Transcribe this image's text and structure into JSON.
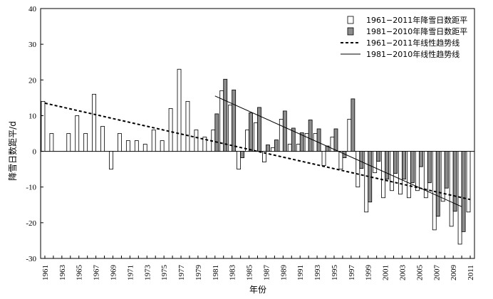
{
  "chart_data": {
    "type": "bar",
    "title": "",
    "xlabel": "年份",
    "ylabel": "降雪日数距平/d",
    "ylim": [
      -30,
      40
    ],
    "yticks": [
      -30,
      -20,
      -10,
      0,
      10,
      20,
      30,
      40
    ],
    "x": [
      1961,
      1962,
      1963,
      1964,
      1965,
      1966,
      1967,
      1968,
      1969,
      1970,
      1971,
      1972,
      1973,
      1974,
      1975,
      1976,
      1977,
      1978,
      1979,
      1980,
      1981,
      1982,
      1983,
      1984,
      1985,
      1986,
      1987,
      1988,
      1989,
      1990,
      1991,
      1992,
      1993,
      1994,
      1995,
      1996,
      1997,
      1998,
      1999,
      2000,
      2001,
      2002,
      2003,
      2004,
      2005,
      2006,
      2007,
      2008,
      2009,
      2010,
      2011
    ],
    "x_tick_labels": [
      "1961",
      "1963",
      "1965",
      "1967",
      "1969",
      "1971",
      "1973",
      "1975",
      "1977",
      "1979",
      "1981",
      "1983",
      "1985",
      "1987",
      "1989",
      "1991",
      "1993",
      "1995",
      "1997",
      "1999",
      "2001",
      "2003",
      "2005",
      "2007",
      "2009",
      "2011"
    ],
    "series": [
      {
        "name": "1961−2011年降雪日数距平",
        "color": "#ffffff",
        "values": [
          14,
          5,
          0,
          5,
          10,
          5,
          16,
          7,
          -5,
          5,
          3,
          3,
          2,
          6,
          3,
          12,
          23,
          14,
          6,
          4,
          6,
          17,
          13,
          -5,
          6,
          8,
          -3,
          1,
          9,
          2,
          2,
          5,
          5,
          -4,
          4,
          -5,
          9,
          -10,
          -17,
          -6,
          -13,
          -11,
          -12,
          -13,
          -11,
          -13,
          -22,
          -14,
          -21,
          -26,
          -17
        ]
      },
      {
        "name": "1981−2010年降雪日数距平",
        "color": "#8c8c8c",
        "x": [
          1981,
          1982,
          1983,
          1984,
          1985,
          1986,
          1987,
          1988,
          1989,
          1990,
          1991,
          1992,
          1993,
          1994,
          1995,
          1996,
          1997,
          1998,
          1999,
          2000,
          2001,
          2002,
          2003,
          2004,
          2005,
          2006,
          2007,
          2008,
          2009,
          2010
        ],
        "values": [
          10.5,
          20.2,
          17.2,
          -1.8,
          10.8,
          12.3,
          1.8,
          3.2,
          11.3,
          6.5,
          5.2,
          8.8,
          6.3,
          1.5,
          6.3,
          -1.8,
          14.7,
          -4.8,
          -14.2,
          -2.8,
          -7.8,
          -6.2,
          -7.8,
          -8.8,
          -4.3,
          -8.8,
          -18.2,
          -10.3,
          -16.8,
          -22.5
        ]
      }
    ],
    "trend_lines": [
      {
        "name": "1961−2011年线性趋势线",
        "style": "dashed",
        "x": [
          1961,
          2011
        ],
        "y": [
          13.5,
          -13.5
        ]
      },
      {
        "name": "1981−2010年线性趋势线",
        "style": "solid",
        "x": [
          1981,
          2010
        ],
        "y": [
          15.5,
          -15.5
        ]
      }
    ],
    "legend_position": "top-right"
  }
}
